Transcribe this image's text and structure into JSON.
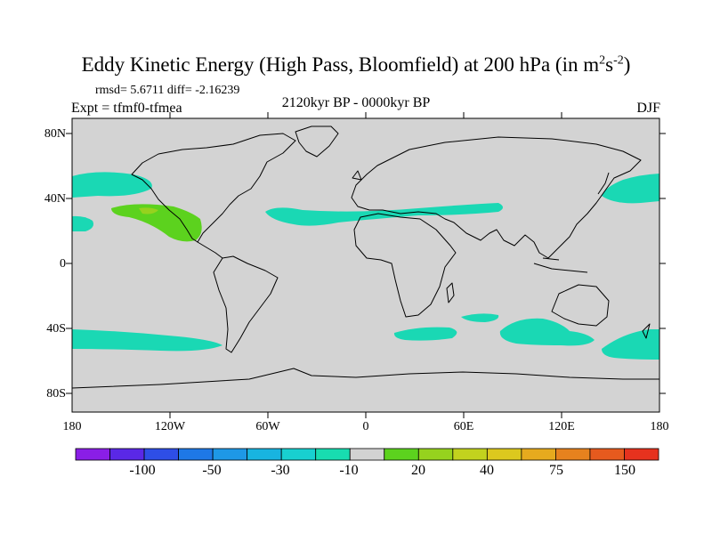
{
  "title_main": "Eddy Kinetic Energy (High Pass, Bloomfield) at 200 hPa (in m",
  "title_sup1": "2",
  "title_mid": "s",
  "title_sup2": "-2",
  "title_end": ")",
  "stats": "rmsd= 5.6711 diff= -2.16239",
  "expt": "Expt = tfmf0-tfmea",
  "period": "2120kyr BP - 0000kyr BP",
  "season": "DJF",
  "lat_labels": [
    "80N",
    "40N",
    "0",
    "40S",
    "80S"
  ],
  "lon_labels": [
    "180",
    "120W",
    "60W",
    "0",
    "60E",
    "120E",
    "180"
  ],
  "colorbar": {
    "colors": [
      "#8a1ee6",
      "#5a28e6",
      "#2e4ee6",
      "#1e78e6",
      "#1e98e6",
      "#18b4e0",
      "#18d0d0",
      "#18dcb0",
      "#d2d2d2",
      "#5cd21e",
      "#96d21e",
      "#c2d21e",
      "#dcc81e",
      "#e6aa1e",
      "#e6821e",
      "#e65a1e",
      "#e6321e"
    ],
    "labels": [
      "-100",
      "-50",
      "-30",
      "-10",
      "20",
      "40",
      "75",
      "150"
    ]
  },
  "map": {
    "background_color": "#d3d3d3",
    "negative_color": "#1ad8b4",
    "positive_color": "#5cd21e",
    "strong_positive_color": "#96d21e"
  }
}
